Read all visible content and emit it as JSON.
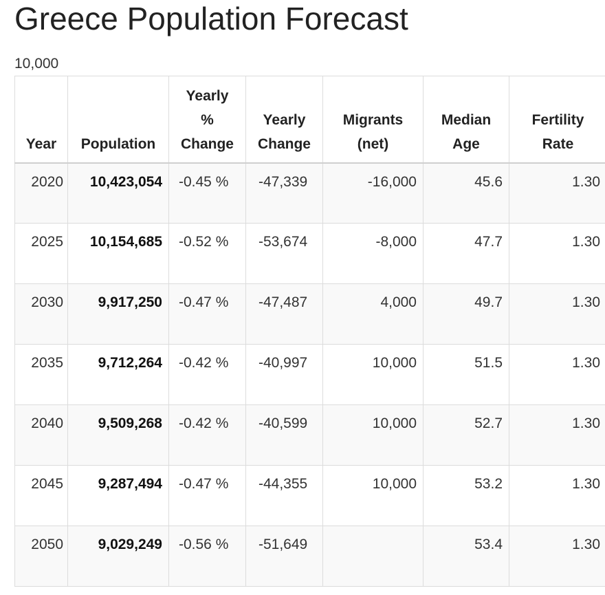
{
  "title": "Greece Population Forecast",
  "subtitle": "10,000",
  "chart_data": {
    "type": "table",
    "title": "Greece Population Forecast",
    "columns": [
      "Year",
      "Population",
      "Yearly % Change",
      "Yearly Change",
      "Migrants (net)",
      "Median Age",
      "Fertility Rate"
    ],
    "header_lines": [
      [
        "Year"
      ],
      [
        "Population"
      ],
      [
        "Yearly",
        "%",
        "Change"
      ],
      [
        "Yearly",
        "Change"
      ],
      [
        "Migrants",
        "(net)"
      ],
      [
        "Median",
        "Age"
      ],
      [
        "Fertility",
        "Rate"
      ]
    ],
    "rows": [
      [
        "2020",
        "10,423,054",
        "-0.45 %",
        "-47,339",
        "-16,000",
        "45.6",
        "1.30"
      ],
      [
        "2025",
        "10,154,685",
        "-0.52 %",
        "-53,674",
        "-8,000",
        "47.7",
        "1.30"
      ],
      [
        "2030",
        "9,917,250",
        "-0.47 %",
        "-47,487",
        "4,000",
        "49.7",
        "1.30"
      ],
      [
        "2035",
        "9,712,264",
        "-0.42 %",
        "-40,997",
        "10,000",
        "51.5",
        "1.30"
      ],
      [
        "2040",
        "9,509,268",
        "-0.42 %",
        "-40,599",
        "10,000",
        "52.7",
        "1.30"
      ],
      [
        "2045",
        "9,287,494",
        "-0.47 %",
        "-44,355",
        "10,000",
        "53.2",
        "1.30"
      ],
      [
        "2050",
        "9,029,249",
        "-0.56 %",
        "-51,649",
        "",
        "53.4",
        "1.30"
      ]
    ]
  }
}
